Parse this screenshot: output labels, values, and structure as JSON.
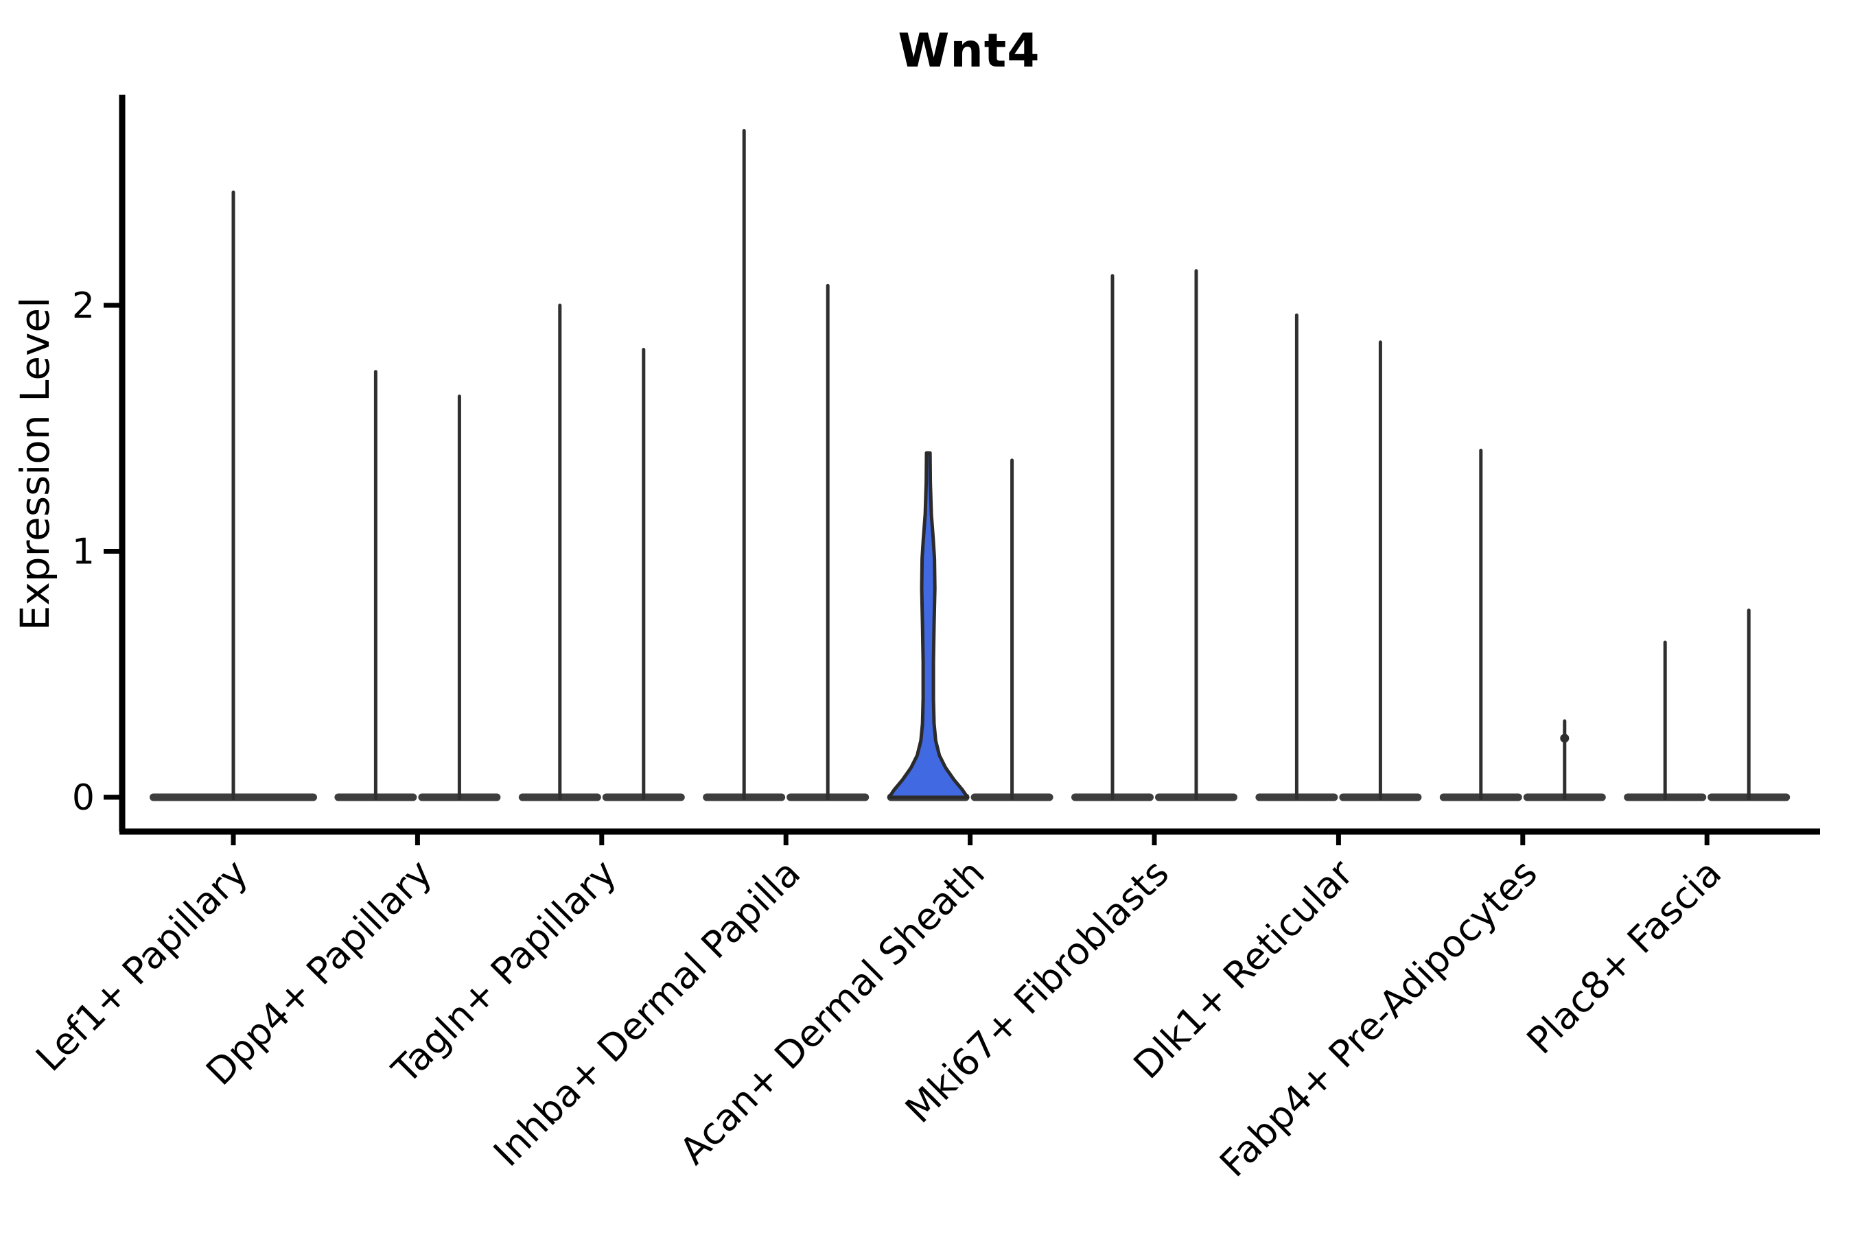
{
  "title": "Wnt4",
  "axes": {
    "y_label": "Expression Level",
    "y_tick_labels": [
      "0",
      "1",
      "2"
    ],
    "y_tick_values": [
      0,
      1,
      2
    ],
    "ylim": [
      0,
      2.85
    ]
  },
  "colors": {
    "background": "#ffffff",
    "axis": "#000000",
    "spike": "#2f2f2f",
    "baseline_bar": "#3d3d3d",
    "violin_outline": "#2b2b2b",
    "highlight_fill": "#4169e1",
    "text": "#000000"
  },
  "chart_data": {
    "type": "violin",
    "title": "Wnt4",
    "xlabel": "",
    "ylabel": "Expression Level",
    "ylim": [
      0,
      2.85
    ],
    "yticks": [
      0,
      1,
      2
    ],
    "grid": false,
    "legend": "none",
    "note": "Each category shows violins collapsed to near-zero width (expression mostly 0) with a thin density spike up to the max expression value; Acan+ Dermal Sheath has one blue filled violin with visible density mass.",
    "categories": [
      {
        "label": "Lef1+ Papillary",
        "violins": [
          {
            "max": 2.46,
            "span": "full"
          }
        ]
      },
      {
        "label": "Dpp4+ Papillary",
        "violins": [
          {
            "max": 1.73
          },
          {
            "max": 1.63
          }
        ]
      },
      {
        "label": "Tagln+ Papillary",
        "violins": [
          {
            "max": 2.0
          },
          {
            "max": 1.82
          }
        ]
      },
      {
        "label": "Inhba+ Dermal Papilla",
        "violins": [
          {
            "max": 2.71
          },
          {
            "max": 2.08
          }
        ]
      },
      {
        "label": "Acan+ Dermal Sheath",
        "violins": [
          {
            "max": 1.4,
            "highlighted": true,
            "profile": [
              [
                0.0,
                0.95
              ],
              [
                0.03,
                0.83
              ],
              [
                0.07,
                0.63
              ],
              [
                0.12,
                0.42
              ],
              [
                0.17,
                0.27
              ],
              [
                0.23,
                0.18
              ],
              [
                0.3,
                0.14
              ],
              [
                0.4,
                0.125
              ],
              [
                0.55,
                0.125
              ],
              [
                0.7,
                0.14
              ],
              [
                0.85,
                0.16
              ],
              [
                0.97,
                0.15
              ],
              [
                1.05,
                0.12
              ],
              [
                1.15,
                0.075
              ],
              [
                1.28,
                0.05
              ],
              [
                1.4,
                0.043
              ]
            ]
          },
          {
            "max": 1.37
          }
        ]
      },
      {
        "label": "Mki67+ Fibroblasts",
        "violins": [
          {
            "max": 2.12
          },
          {
            "max": 2.14
          }
        ]
      },
      {
        "label": "Dlk1+ Reticular",
        "violins": [
          {
            "max": 1.96
          },
          {
            "max": 1.85
          }
        ]
      },
      {
        "label": "Fabp4+ Pre-Adipocytes",
        "violins": [
          {
            "max": 1.41
          },
          {
            "max": 0.31,
            "beads": [
              0.24
            ]
          }
        ]
      },
      {
        "label": "Plac8+ Fascia",
        "violins": [
          {
            "max": 0.63
          },
          {
            "max": 0.76
          }
        ]
      }
    ]
  }
}
